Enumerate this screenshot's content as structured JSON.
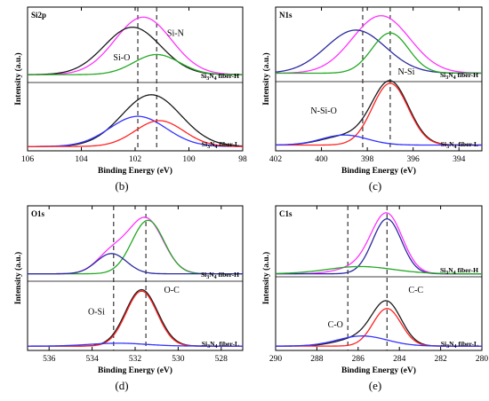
{
  "chart_data": [
    {
      "type": "line",
      "id": "b",
      "title": "Si2p",
      "panel_label": "(b)",
      "xlabel": "Binding Energy (eV)",
      "ylabel": "Intensity (a.u.)",
      "xlim": [
        106,
        98
      ],
      "xticks": [
        106,
        104,
        102,
        100,
        98
      ],
      "samples": {
        "top": "Si3N4 fiber-H",
        "top_base": "Si",
        "top_sub1": "3",
        "top_mid": "N",
        "top_sub2": "4",
        "top_rest": " fiber-H",
        "bottom": "Si3N4 fiber-L",
        "bottom_base": "Si",
        "bottom_sub1": "3",
        "bottom_mid": "N",
        "bottom_sub2": "4",
        "bottom_rest": " fiber-L"
      },
      "peak_labels": [
        {
          "text": "Si-O",
          "x": 102.5,
          "y": 0.63
        },
        {
          "text": "Si-N",
          "x": 100.5,
          "y": 0.8
        }
      ],
      "reference_lines": [
        101.9,
        101.2
      ],
      "top_offset": 0.5,
      "series": [
        {
          "group": "top",
          "color": "#ff33ff",
          "components": [
            {
              "center": 101.7,
              "height": 0.4,
              "sigma": 1.05
            }
          ],
          "offset": 0.03
        },
        {
          "group": "top",
          "color": "#1a1a1a",
          "components": [
            {
              "center": 102.1,
              "height": 0.33,
              "sigma": 1.05
            }
          ],
          "offset": 0.03
        },
        {
          "group": "top",
          "color": "#23a823",
          "components": [
            {
              "center": 101.2,
              "height": 0.14,
              "sigma": 0.85
            }
          ],
          "offset": 0.03
        },
        {
          "group": "bottom",
          "color": "#1a1a1a",
          "components": [
            {
              "center": 101.4,
              "height": 0.36,
              "sigma": 1.1
            }
          ],
          "offset": 0.03
        },
        {
          "group": "bottom",
          "color": "#3333ff",
          "components": [
            {
              "center": 101.9,
              "height": 0.21,
              "sigma": 1.05
            }
          ],
          "offset": 0.03
        },
        {
          "group": "bottom",
          "color": "#ff2222",
          "components": [
            {
              "center": 101.1,
              "height": 0.18,
              "sigma": 0.9
            }
          ],
          "offset": 0.03
        }
      ]
    },
    {
      "type": "line",
      "id": "c",
      "title": "N1s",
      "panel_label": "(c)",
      "xlabel": "Binding Energy (eV)",
      "ylabel": "Intensity (a.u.)",
      "xlim": [
        402,
        393
      ],
      "xticks": [
        402,
        400,
        398,
        396,
        394
      ],
      "samples": {
        "top": "Si3N4 fiber-H",
        "top_base": "Si",
        "top_sub1": "3",
        "top_mid": "N",
        "top_sub2": "4",
        "top_rest": " fiber-H",
        "bottom": "Si3N4 fiber-L",
        "bottom_base": "Si",
        "bottom_sub1": "3",
        "bottom_mid": "N",
        "bottom_sub2": "4",
        "bottom_rest": " fiber-L"
      },
      "peak_labels": [
        {
          "text": "N-Si-O",
          "x": 399.9,
          "y": 0.26
        },
        {
          "text": "N-Si",
          "x": 396.3,
          "y": 0.53
        }
      ],
      "reference_lines": [
        398.2,
        397.0
      ],
      "top_offset": 0.5,
      "series": [
        {
          "group": "top",
          "color": "#ff33ff",
          "components": [
            {
              "center": 397.4,
              "height": 0.4,
              "sigma": 1.25
            }
          ],
          "offset": 0.04
        },
        {
          "group": "top",
          "color": "#2a2aa0",
          "components": [
            {
              "center": 398.5,
              "height": 0.3,
              "sigma": 1.3
            }
          ],
          "offset": 0.04
        },
        {
          "group": "top",
          "color": "#23a823",
          "components": [
            {
              "center": 397.0,
              "height": 0.28,
              "sigma": 0.8
            }
          ],
          "offset": 0.04
        },
        {
          "group": "bottom",
          "color": "#1a1a1a",
          "components": [
            {
              "center": 397.0,
              "height": 0.44,
              "sigma": 0.8
            },
            {
              "center": 399.0,
              "height": 0.06,
              "sigma": 1.0
            }
          ],
          "offset": 0.04
        },
        {
          "group": "bottom",
          "color": "#ff2222",
          "components": [
            {
              "center": 397.0,
              "height": 0.43,
              "sigma": 0.78
            }
          ],
          "offset": 0.04
        },
        {
          "group": "bottom",
          "color": "#3333ff",
          "components": [
            {
              "center": 399.0,
              "height": 0.07,
              "sigma": 1.0
            }
          ],
          "offset": 0.04
        }
      ]
    },
    {
      "type": "line",
      "id": "d",
      "title": "O1s",
      "panel_label": "(d)",
      "xlabel": "Binding Energy (eV)",
      "ylabel": "Intensity (a.u.)",
      "xlim": [
        537,
        527
      ],
      "xticks": [
        536,
        534,
        532,
        530,
        528
      ],
      "samples": {
        "top": "Si3N4 fiber-H",
        "top_base": "Si",
        "top_sub1": "3",
        "top_mid": "N",
        "top_sub2": "4",
        "top_rest": " fiber-H",
        "bottom": "Si3N4 fiber-L",
        "bottom_base": "Si",
        "bottom_sub1": "3",
        "bottom_mid": "N",
        "bottom_sub2": "4",
        "bottom_rest": " fiber-L"
      },
      "peak_labels": [
        {
          "text": "O-Si",
          "x": 533.8,
          "y": 0.25
        },
        {
          "text": "O-C",
          "x": 530.3,
          "y": 0.4
        }
      ],
      "reference_lines": [
        533.0,
        531.5
      ],
      "top_offset": 0.5,
      "series": [
        {
          "group": "top",
          "color": "#ff33ff",
          "components": [
            {
              "center": 531.5,
              "height": 0.38,
              "sigma": 0.8
            },
            {
              "center": 533.1,
              "height": 0.14,
              "sigma": 0.7
            }
          ],
          "offset": 0.03
        },
        {
          "group": "top",
          "color": "#23a823",
          "components": [
            {
              "center": 531.4,
              "height": 0.37,
              "sigma": 0.75
            }
          ],
          "offset": 0.03
        },
        {
          "group": "top",
          "color": "#2a2aa0",
          "components": [
            {
              "center": 533.1,
              "height": 0.14,
              "sigma": 0.7
            }
          ],
          "offset": 0.03
        },
        {
          "group": "bottom",
          "color": "#1a1a1a",
          "components": [
            {
              "center": 531.7,
              "height": 0.39,
              "sigma": 0.75
            }
          ],
          "offset": 0.03
        },
        {
          "group": "bottom",
          "color": "#ff2222",
          "components": [
            {
              "center": 531.7,
              "height": 0.38,
              "sigma": 0.72
            }
          ],
          "offset": 0.03
        },
        {
          "group": "bottom",
          "color": "#3333ff",
          "components": [
            {
              "center": 532.8,
              "height": 0.02,
              "sigma": 1.3
            }
          ],
          "offset": 0.03
        }
      ]
    },
    {
      "type": "line",
      "id": "e",
      "title": "C1s",
      "panel_label": "(e)",
      "xlabel": "Binding Energy (eV)",
      "ylabel": "Intensity (a.u.)",
      "xlim": [
        290,
        280
      ],
      "xticks": [
        290,
        288,
        286,
        284,
        282,
        280
      ],
      "samples": {
        "top": "Si3N4 fiber-H",
        "top_base": "Si",
        "top_sub1": "3",
        "top_mid": "N",
        "top_sub2": "4",
        "top_rest": " fiber-H",
        "bottom": "Si3N4 fiber-L",
        "bottom_base": "Si",
        "bottom_sub1": "3",
        "bottom_mid": "N",
        "bottom_sub2": "4",
        "bottom_rest": " fiber-L"
      },
      "peak_labels": [
        {
          "text": "C-O",
          "x": 287.1,
          "y": 0.16
        },
        {
          "text": "C-C",
          "x": 283.2,
          "y": 0.4
        }
      ],
      "reference_lines": [
        286.5,
        284.6
      ],
      "top_offset": 0.5,
      "series": [
        {
          "group": "top",
          "color": "#ff33ff",
          "components": [
            {
              "center": 284.6,
              "height": 0.4,
              "sigma": 0.75
            },
            {
              "center": 285.9,
              "height": 0.05,
              "sigma": 1.0
            }
          ],
          "offset": 0.03
        },
        {
          "group": "top",
          "color": "#2a2aa0",
          "components": [
            {
              "center": 284.6,
              "height": 0.38,
              "sigma": 0.7
            }
          ],
          "offset": 0.03
        },
        {
          "group": "top",
          "color": "#23a823",
          "components": [
            {
              "center": 285.9,
              "height": 0.05,
              "sigma": 1.6
            }
          ],
          "offset": 0.03
        },
        {
          "group": "bottom",
          "color": "#1a1a1a",
          "components": [
            {
              "center": 284.6,
              "height": 0.28,
              "sigma": 0.7
            },
            {
              "center": 285.8,
              "height": 0.06,
              "sigma": 1.1
            }
          ],
          "offset": 0.03
        },
        {
          "group": "bottom",
          "color": "#ff2222",
          "components": [
            {
              "center": 284.6,
              "height": 0.26,
              "sigma": 0.68
            }
          ],
          "offset": 0.03
        },
        {
          "group": "bottom",
          "color": "#3333ff",
          "components": [
            {
              "center": 285.8,
              "height": 0.07,
              "sigma": 1.2
            }
          ],
          "offset": 0.03
        }
      ]
    }
  ]
}
